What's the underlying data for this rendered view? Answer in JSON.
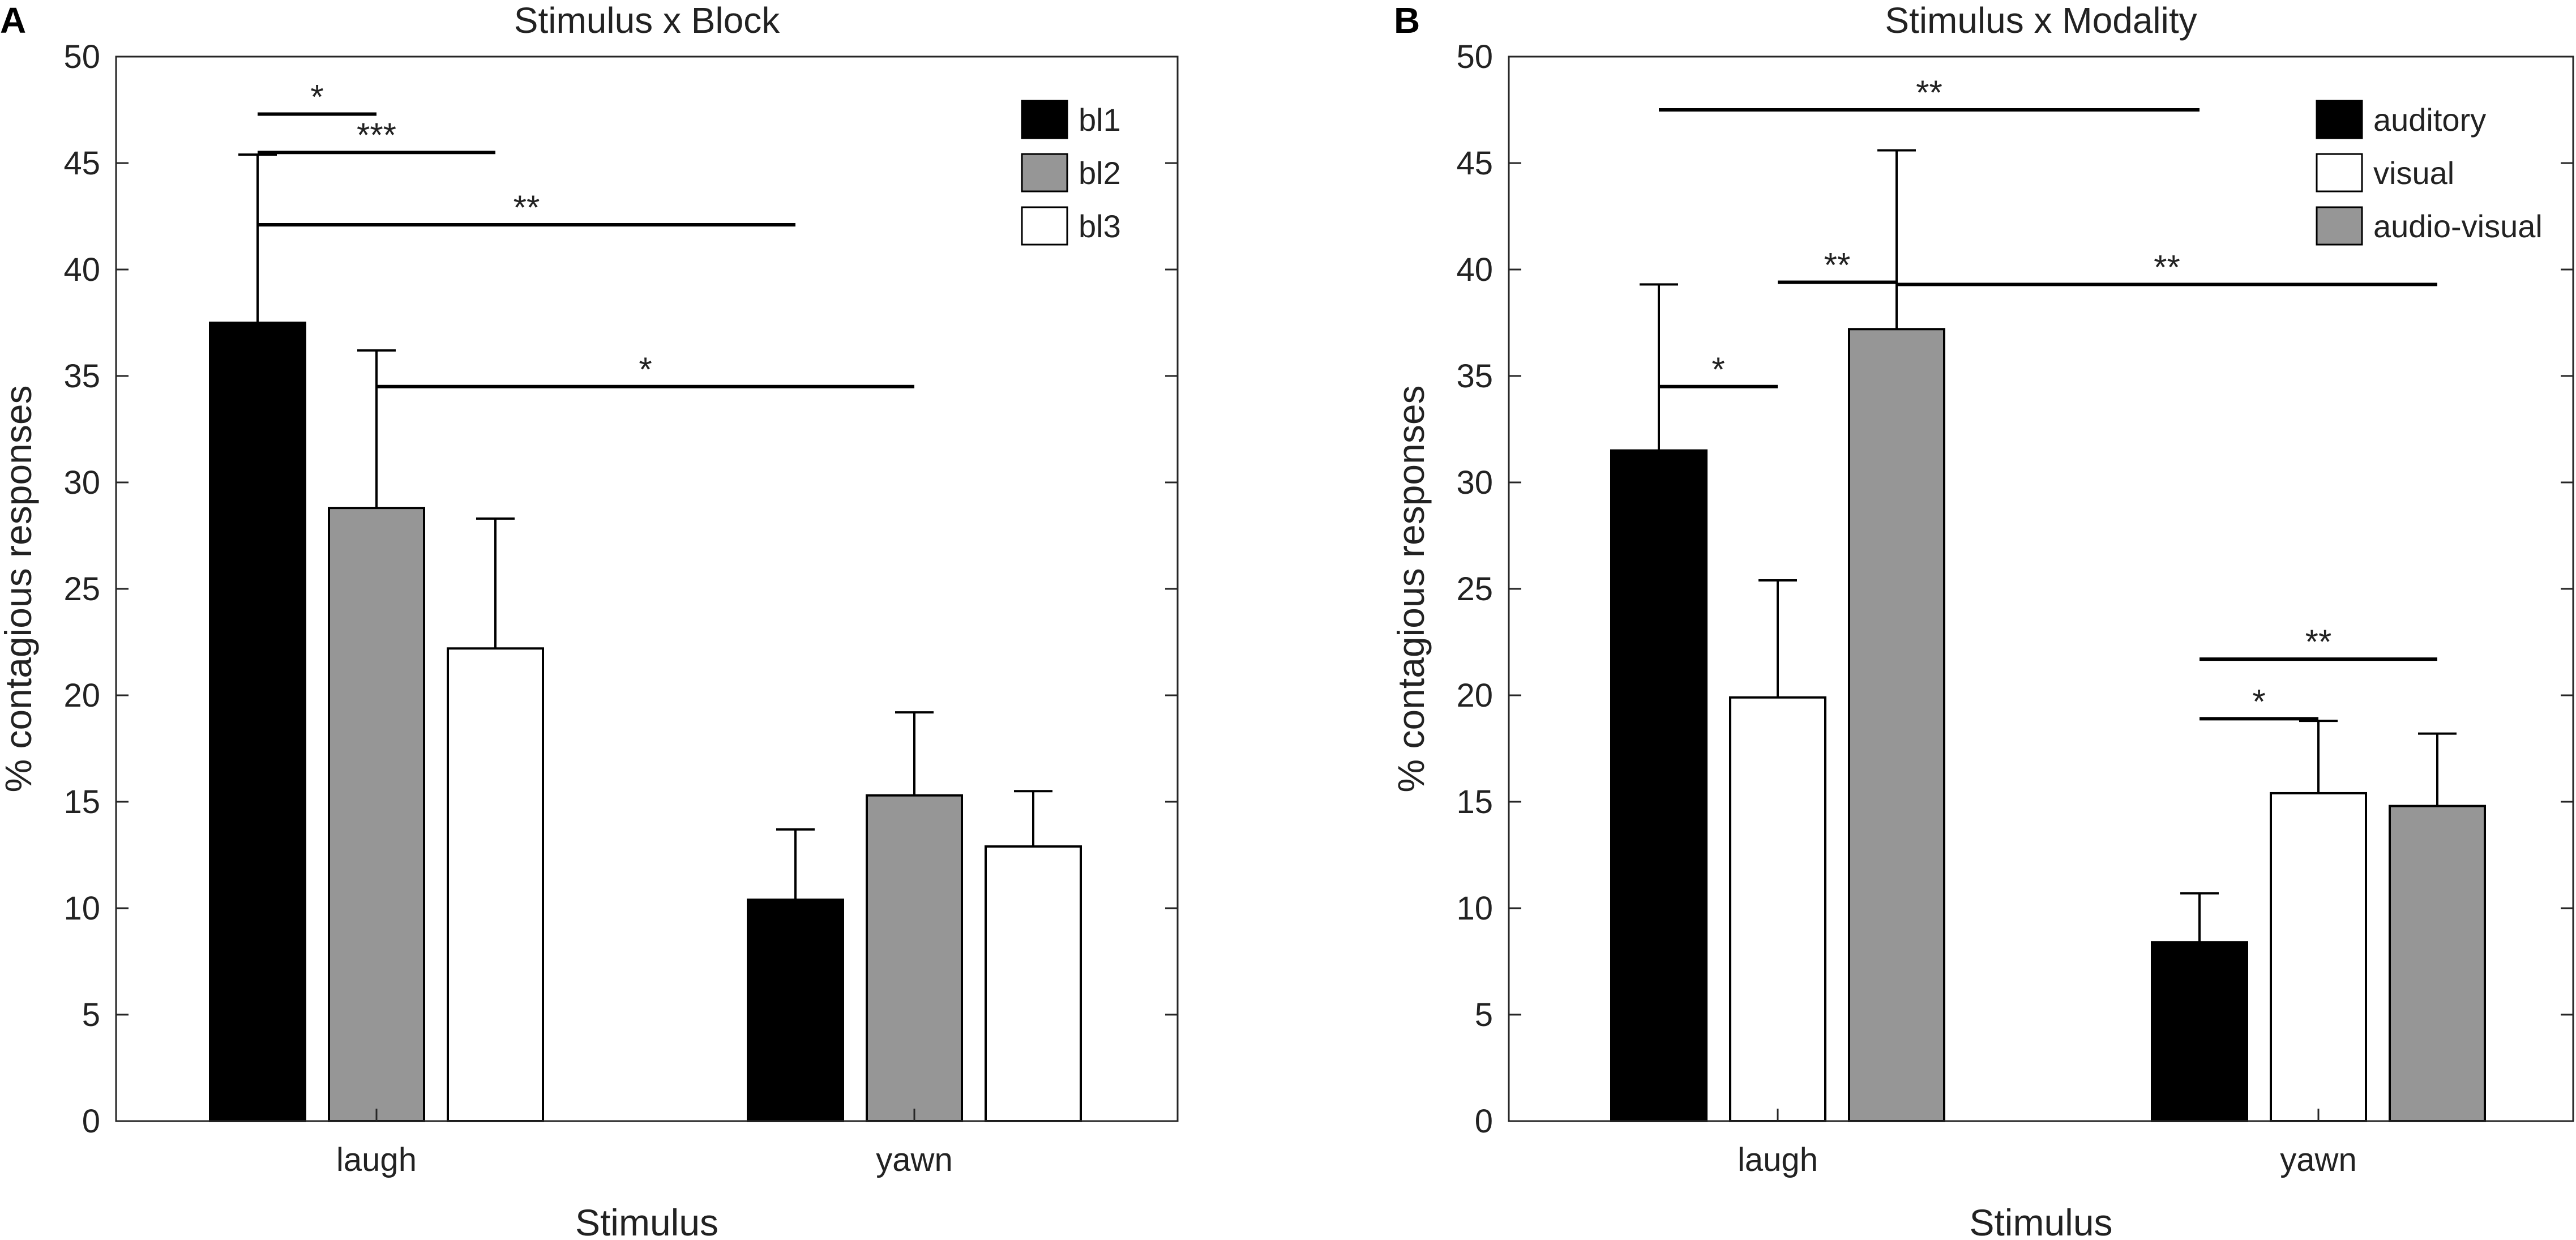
{
  "figure": {
    "panels": [
      {
        "letter": "A",
        "chart_index": 0
      },
      {
        "letter": "B",
        "chart_index": 1
      }
    ]
  },
  "chart_data": [
    {
      "type": "bar",
      "title": "Stimulus x Block",
      "xlabel": "Stimulus",
      "ylabel": "% contagious responses",
      "ylim": [
        0,
        50
      ],
      "yticks": [
        0,
        5,
        10,
        15,
        20,
        25,
        30,
        35,
        40,
        45,
        50
      ],
      "categories": [
        "laugh",
        "yawn"
      ],
      "legend_position": "top-right",
      "series": [
        {
          "name": "bl1",
          "color": "#000000",
          "values": [
            37.5,
            10.4
          ],
          "errors": [
            7.9,
            3.3
          ]
        },
        {
          "name": "bl2",
          "color": "#969696",
          "values": [
            28.8,
            15.3
          ],
          "errors": [
            7.4,
            3.9
          ]
        },
        {
          "name": "bl3",
          "color": "#ffffff",
          "values": [
            22.2,
            12.9
          ],
          "errors": [
            6.1,
            2.6
          ]
        }
      ],
      "significance": [
        {
          "label": "*",
          "from": {
            "category": 0,
            "series": 0
          },
          "to": {
            "category": 0,
            "series": 1
          },
          "y": 47.3
        },
        {
          "label": "***",
          "from": {
            "category": 0,
            "series": 0
          },
          "to": {
            "category": 0,
            "series": 2
          },
          "y": 45.5
        },
        {
          "label": "**",
          "from": {
            "category": 0,
            "series": 0
          },
          "to": {
            "category": 1,
            "series": 0
          },
          "y": 42.1
        },
        {
          "label": "*",
          "from": {
            "category": 0,
            "series": 1
          },
          "to": {
            "category": 1,
            "series": 1
          },
          "y": 34.5
        }
      ]
    },
    {
      "type": "bar",
      "title": "Stimulus x Modality",
      "xlabel": "Stimulus",
      "ylabel": "% contagious responses",
      "ylim": [
        0,
        50
      ],
      "yticks": [
        0,
        5,
        10,
        15,
        20,
        25,
        30,
        35,
        40,
        45,
        50
      ],
      "categories": [
        "laugh",
        "yawn"
      ],
      "legend_position": "top-right",
      "series": [
        {
          "name": "auditory",
          "color": "#000000",
          "values": [
            31.5,
            8.4
          ],
          "errors": [
            7.8,
            2.3
          ]
        },
        {
          "name": "visual",
          "color": "#ffffff",
          "values": [
            19.9,
            15.4
          ],
          "errors": [
            5.5,
            3.4
          ]
        },
        {
          "name": "audio-visual",
          "color": "#969696",
          "values": [
            37.2,
            14.8
          ],
          "errors": [
            8.4,
            3.4
          ]
        }
      ],
      "significance": [
        {
          "label": "**",
          "from": {
            "category": 0,
            "series": 0
          },
          "to": {
            "category": 1,
            "series": 0
          },
          "y": 47.5
        },
        {
          "label": "**",
          "from": {
            "category": 0,
            "series": 1
          },
          "to": {
            "category": 0,
            "series": 2
          },
          "y": 39.4
        },
        {
          "label": "**",
          "from": {
            "category": 0,
            "series": 2
          },
          "to": {
            "category": 1,
            "series": 2
          },
          "y": 39.3
        },
        {
          "label": "*",
          "from": {
            "category": 0,
            "series": 0
          },
          "to": {
            "category": 0,
            "series": 1
          },
          "y": 34.5
        },
        {
          "label": "**",
          "from": {
            "category": 1,
            "series": 0
          },
          "to": {
            "category": 1,
            "series": 2
          },
          "y": 21.7
        },
        {
          "label": "*",
          "from": {
            "category": 1,
            "series": 0
          },
          "to": {
            "category": 1,
            "series": 1
          },
          "y": 18.9
        }
      ]
    }
  ]
}
